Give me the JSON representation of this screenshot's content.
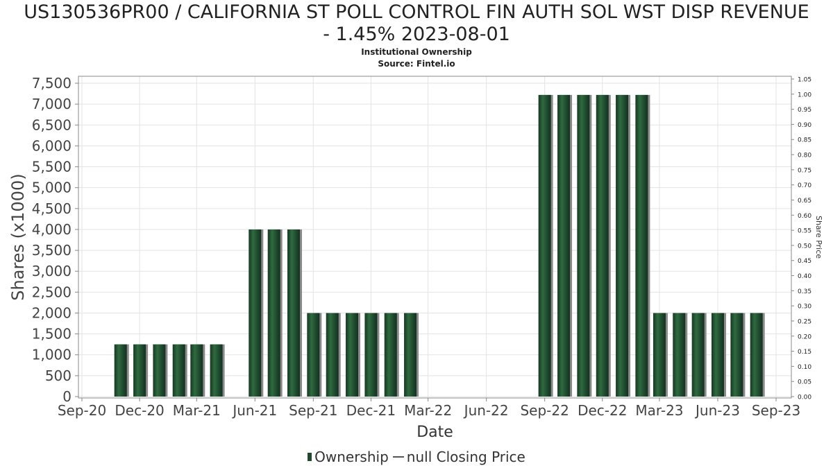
{
  "chart_data": {
    "type": "bar",
    "title_line1": "US130536PR00 / CALIFORNIA ST POLL CONTROL FIN AUTH SOL WST DISP REVENUE",
    "title_line2": "- 1.45% 2023-08-01",
    "subtitle": "Institutional Ownership",
    "source": "Source: Fintel.io",
    "xlabel": "Date",
    "ylabel": "Shares (x1000)",
    "y2label": "Share Price",
    "ylim": [
      0,
      7600
    ],
    "y2lim": [
      0,
      1.05
    ],
    "yticks": [
      "0",
      "500",
      "1,000",
      "1,500",
      "2,000",
      "2,500",
      "3,000",
      "3,500",
      "4,000",
      "4,500",
      "5,000",
      "5,500",
      "6,000",
      "6,500",
      "7,000",
      "7,500"
    ],
    "y2ticks": [
      "0.00",
      "0.05",
      "0.10",
      "0.15",
      "0.20",
      "0.25",
      "0.30",
      "0.35",
      "0.40",
      "0.45",
      "0.50",
      "0.55",
      "0.60",
      "0.65",
      "0.70",
      "0.75",
      "0.80",
      "0.85",
      "0.90",
      "0.95",
      "1.00",
      "1.05"
    ],
    "xticks": [
      "Sep-20",
      "Dec-20",
      "Mar-21",
      "Jun-21",
      "Sep-21",
      "Dec-21",
      "Mar-22",
      "Jun-22",
      "Sep-22",
      "Dec-22",
      "Mar-23",
      "Jun-23",
      "Sep-23"
    ],
    "series": [
      {
        "name": "Ownership",
        "color": "#1f4a2e",
        "points": [
          {
            "x": "2020-11-01",
            "y": 1250
          },
          {
            "x": "2020-12-01",
            "y": 1250
          },
          {
            "x": "2021-01-01",
            "y": 1250
          },
          {
            "x": "2021-02-01",
            "y": 1250
          },
          {
            "x": "2021-03-01",
            "y": 1250
          },
          {
            "x": "2021-04-01",
            "y": 1250
          },
          {
            "x": "2021-06-01",
            "y": 4000
          },
          {
            "x": "2021-07-01",
            "y": 4000
          },
          {
            "x": "2021-08-01",
            "y": 4000
          },
          {
            "x": "2021-09-01",
            "y": 2000
          },
          {
            "x": "2021-10-01",
            "y": 2000
          },
          {
            "x": "2021-11-01",
            "y": 2000
          },
          {
            "x": "2021-12-01",
            "y": 2000
          },
          {
            "x": "2022-01-01",
            "y": 2000
          },
          {
            "x": "2022-02-01",
            "y": 2000
          },
          {
            "x": "2022-09-01",
            "y": 7220
          },
          {
            "x": "2022-10-01",
            "y": 7220
          },
          {
            "x": "2022-11-01",
            "y": 7220
          },
          {
            "x": "2022-12-01",
            "y": 7220
          },
          {
            "x": "2023-01-01",
            "y": 7220
          },
          {
            "x": "2023-02-01",
            "y": 7220
          },
          {
            "x": "2023-03-01",
            "y": 2000
          },
          {
            "x": "2023-04-01",
            "y": 2000
          },
          {
            "x": "2023-05-01",
            "y": 2000
          },
          {
            "x": "2023-06-01",
            "y": 2000
          },
          {
            "x": "2023-07-01",
            "y": 2000
          },
          {
            "x": "2023-08-01",
            "y": 2000
          }
        ]
      },
      {
        "name": "null Closing Price",
        "color": "#555555",
        "points": []
      }
    ],
    "grid": true,
    "legend_position": "bottom-center"
  }
}
